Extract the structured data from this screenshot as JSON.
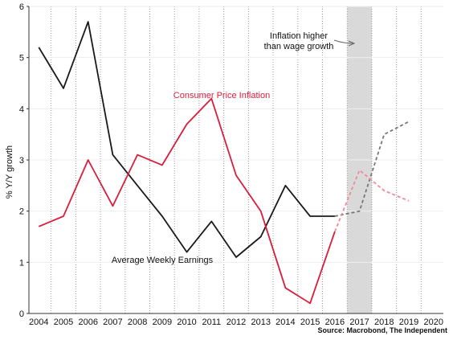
{
  "chart_data": {
    "type": "line",
    "ylabel": "% Y/Y growth",
    "xlabel": "",
    "ylim": [
      0,
      6
    ],
    "xlim": [
      2003.6,
      2020.4
    ],
    "categories": [
      "2004",
      "2005",
      "2006",
      "2007",
      "2008",
      "2009",
      "2010",
      "2011",
      "2012",
      "2013",
      "2014",
      "2015",
      "2016",
      "2017",
      "2018",
      "2019",
      "2020"
    ],
    "yticks": [
      "0",
      "1",
      "2",
      "3",
      "4",
      "5",
      "6"
    ],
    "grid": "dotted-vertical",
    "shaded_region": [
      2016.5,
      2017.5
    ],
    "series": [
      {
        "name": "Average Weekly Earnings",
        "color": "#1a1a1a",
        "x": [
          2004,
          2005,
          2006,
          2007,
          2008,
          2009,
          2010,
          2011,
          2012,
          2013,
          2014,
          2015,
          2016
        ],
        "values": [
          5.2,
          4.4,
          5.7,
          3.1,
          2.5,
          1.9,
          1.2,
          1.8,
          1.1,
          1.5,
          2.5,
          1.9,
          1.9
        ],
        "forecast_x": [
          2016,
          2017,
          2018,
          2019
        ],
        "forecast_values": [
          1.9,
          2.0,
          3.5,
          3.75
        ]
      },
      {
        "name": "Consumer Price Inflation",
        "color": "#d81e3c",
        "x": [
          2004,
          2005,
          2006,
          2007,
          2008,
          2009,
          2010,
          2011,
          2012,
          2013,
          2014,
          2015,
          2016
        ],
        "values": [
          1.7,
          1.9,
          3.0,
          2.1,
          3.1,
          2.9,
          3.7,
          4.2,
          2.7,
          2.0,
          0.5,
          0.2,
          1.6
        ],
        "forecast_x": [
          2016,
          2017,
          2018,
          2019
        ],
        "forecast_values": [
          1.6,
          2.8,
          2.4,
          2.2
        ]
      }
    ],
    "annotations": [
      {
        "lines": [
          "Inflation higher",
          "than wage growth"
        ]
      }
    ],
    "source": "Source: Macrobond, The Independent"
  }
}
